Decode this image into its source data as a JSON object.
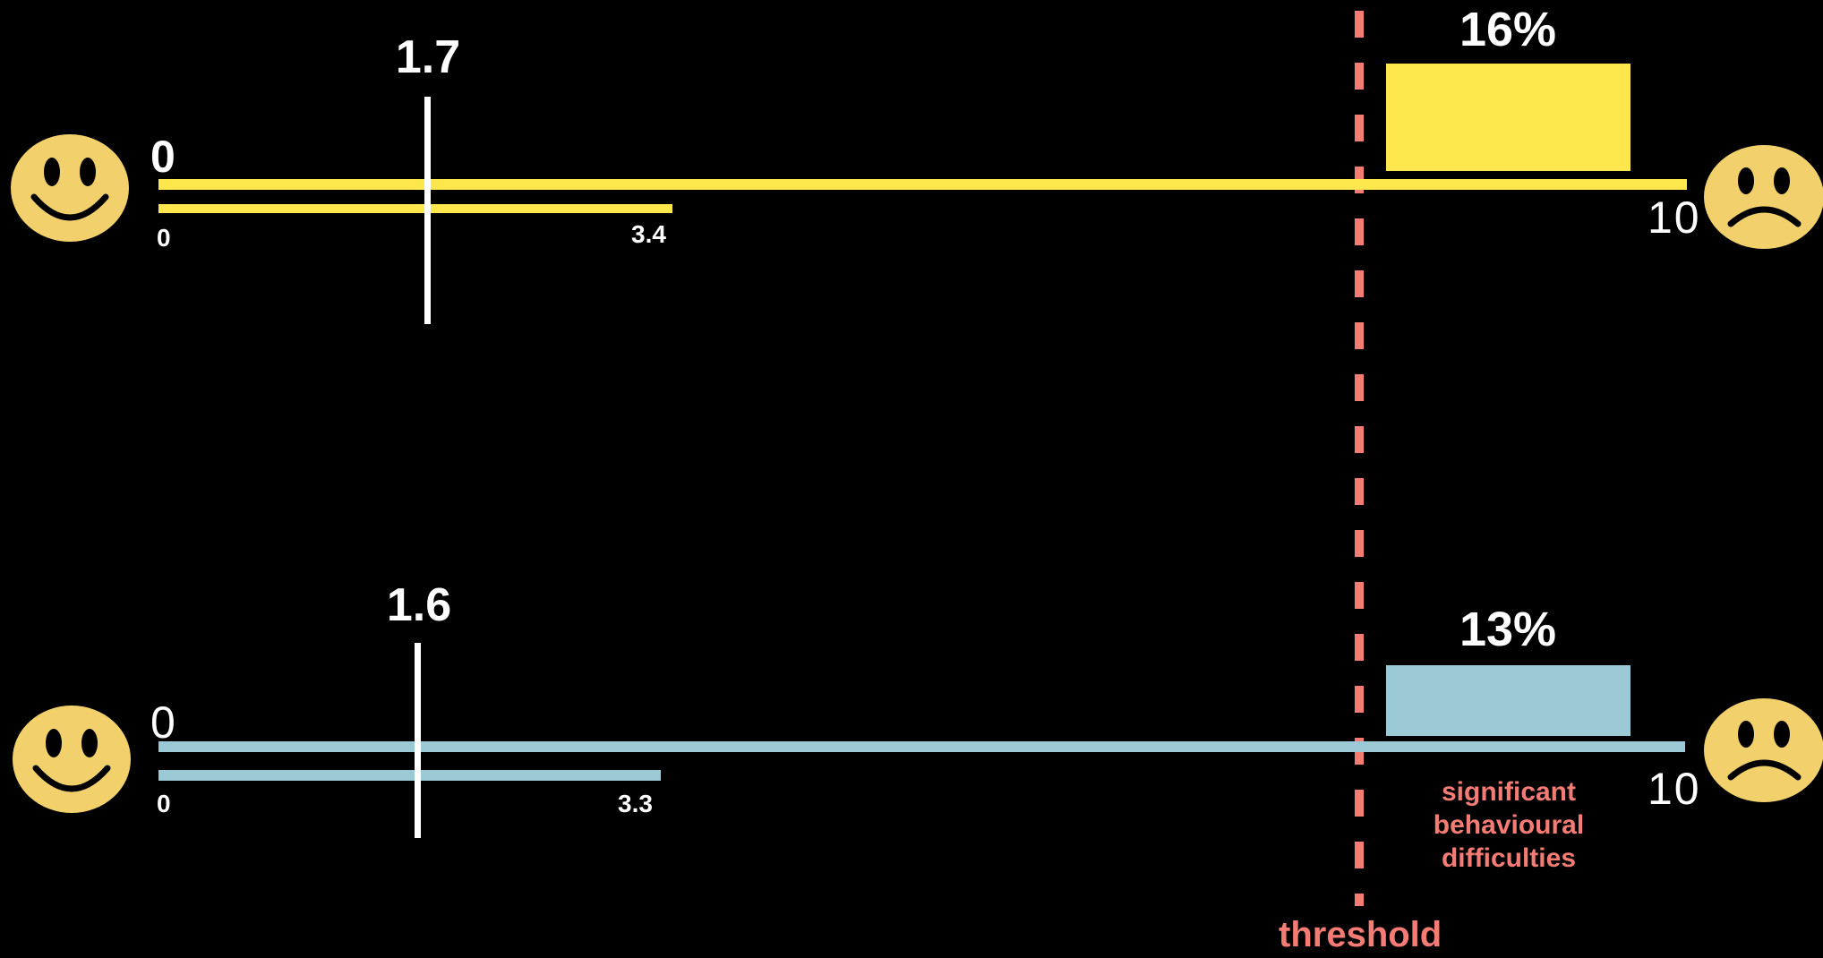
{
  "colors": {
    "background": "#000000",
    "row1": "#fde74c",
    "row2": "#9cc9d6",
    "threshold": "#f47c74",
    "face": "#f2d06b"
  },
  "icons": {
    "left_face": "smiley-face-icon",
    "right_face": "sad-face-icon"
  },
  "rows": [
    {
      "scale_start": "0",
      "scale_end": "10",
      "mean": "1.7",
      "range_min": "0",
      "range_max": "3.4",
      "percent_above": "16%"
    },
    {
      "scale_start": "0",
      "scale_end": "10",
      "mean": "1.6",
      "range_min": "0",
      "range_max": "3.3",
      "percent_above": "13%"
    }
  ],
  "threshold_label": "threshold",
  "note_lines": [
    "significant",
    "behavioural",
    "difficulties"
  ]
}
